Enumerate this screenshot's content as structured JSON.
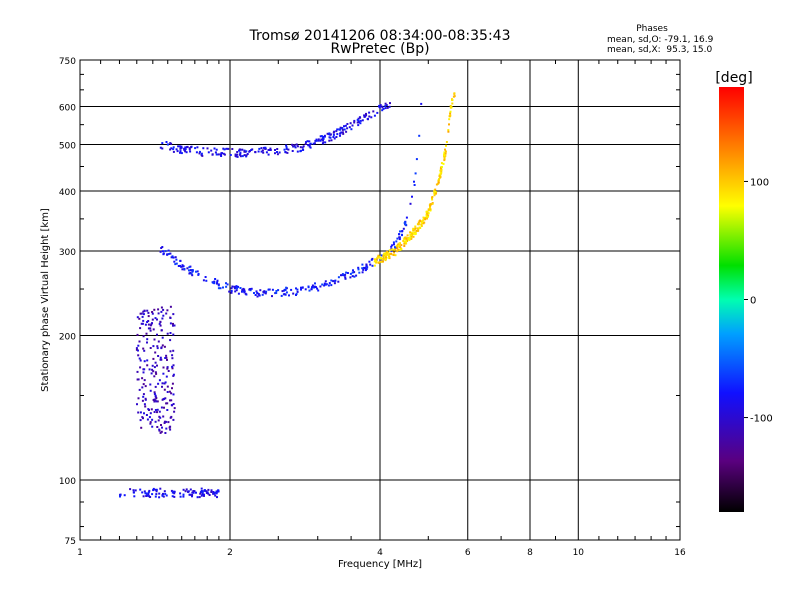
{
  "chart_data": {
    "type": "scatter",
    "title": "Tromsø 20141206 08:34:00-08:35:43",
    "subtitle": "RwPretec (Bp)",
    "xlabel": "Frequency [MHz]",
    "ylabel": "Stationary phase Virtual Height [km]",
    "x_scale": "log",
    "y_scale": "log",
    "xlim": [
      1,
      16
    ],
    "ylim": [
      75,
      750
    ],
    "x_ticks": [
      1,
      2,
      4,
      6,
      8,
      10,
      16
    ],
    "y_ticks": [
      75,
      100,
      200,
      300,
      400,
      500,
      600,
      750
    ],
    "grid": true,
    "stats": {
      "heading": "Phases",
      "o_line": "mean, sd,O: -79.1, 16.9",
      "x_line": "mean, sd,X:  95.3, 15.0"
    },
    "colorbar": {
      "label": "[deg]",
      "range": [
        -180,
        180
      ],
      "ticks": [
        100,
        0,
        -100
      ],
      "tick_labels": [
        "100",
        "0",
        "-100"
      ]
    },
    "traces": [
      {
        "id": "E_layer",
        "freq_range": [
          1.2,
          1.9
        ],
        "height_range": [
          92,
          96
        ],
        "phase": -90
      },
      {
        "id": "F1_O",
        "points": [
          [
            1.45,
            305
          ],
          [
            1.6,
            280
          ],
          [
            1.8,
            262
          ],
          [
            2.0,
            250
          ],
          [
            2.3,
            245
          ],
          [
            2.8,
            248
          ],
          [
            3.2,
            258
          ],
          [
            3.6,
            272
          ],
          [
            4.0,
            290
          ],
          [
            4.3,
            310
          ],
          [
            4.55,
            350
          ],
          [
            4.7,
            420
          ],
          [
            4.8,
            520
          ],
          [
            4.85,
            630
          ]
        ],
        "phase": -79.1
      },
      {
        "id": "F1_X",
        "points": [
          [
            3.9,
            285
          ],
          [
            4.3,
            300
          ],
          [
            4.7,
            330
          ],
          [
            5.0,
            360
          ],
          [
            5.25,
            420
          ],
          [
            5.45,
            500
          ],
          [
            5.55,
            600
          ],
          [
            5.65,
            640
          ]
        ],
        "phase": 95.3
      },
      {
        "id": "F2_O",
        "points": [
          [
            1.45,
            500
          ],
          [
            1.6,
            488
          ],
          [
            1.8,
            482
          ],
          [
            2.1,
            480
          ],
          [
            2.5,
            485
          ],
          [
            2.8,
            495
          ],
          [
            3.2,
            520
          ],
          [
            3.6,
            555
          ],
          [
            3.9,
            585
          ],
          [
            4.2,
            610
          ]
        ],
        "phase": -90
      },
      {
        "id": "spread_F",
        "freq_range": [
          1.3,
          1.55
        ],
        "height_range": [
          125,
          230
        ],
        "phase": -110
      }
    ]
  }
}
